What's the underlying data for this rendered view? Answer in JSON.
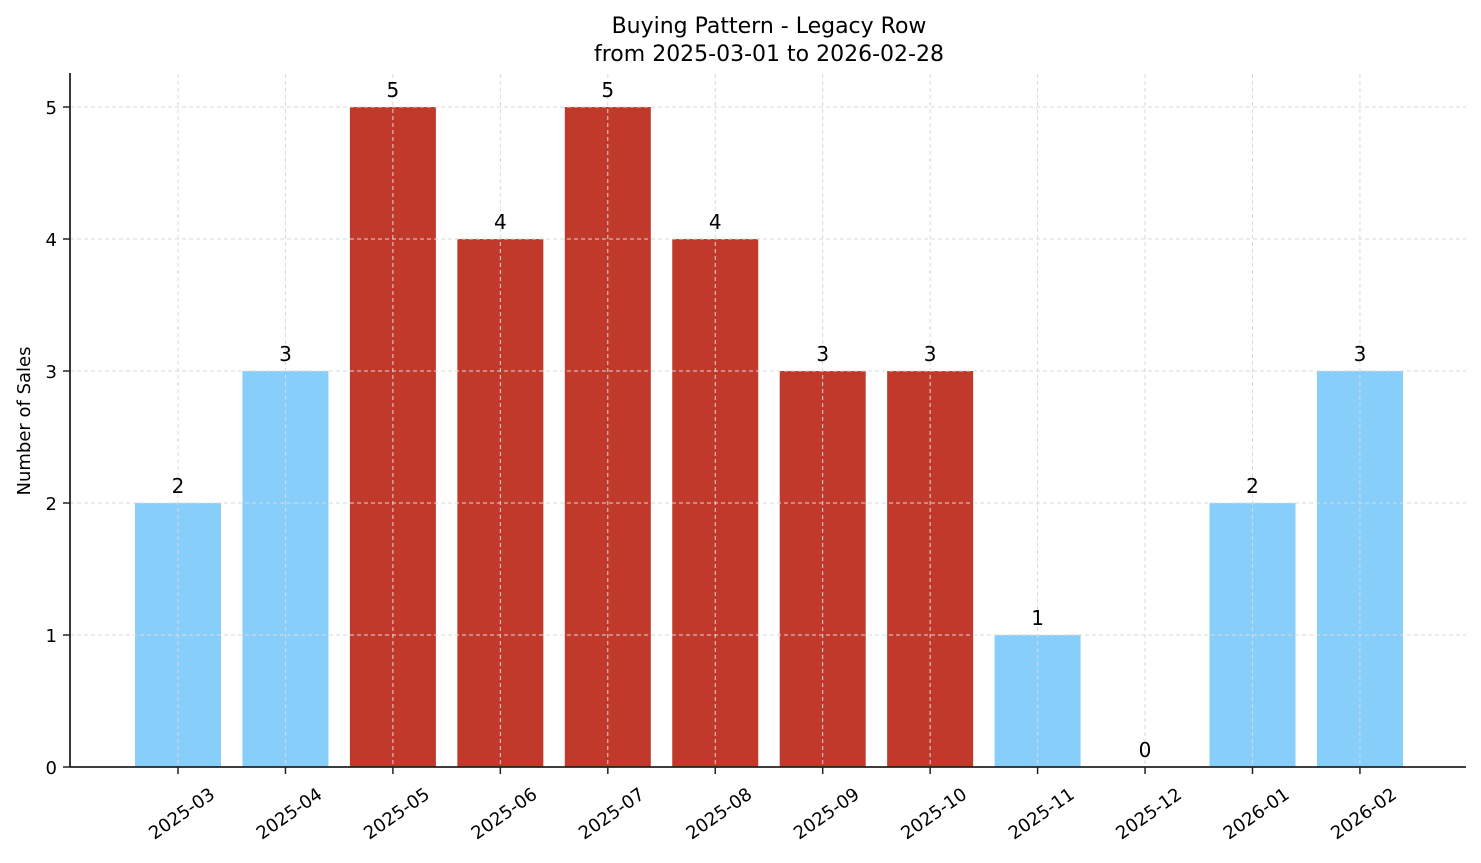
{
  "chart_data": {
    "type": "bar",
    "title": "Buying Pattern - Legacy Row",
    "subtitle": "from 2025-03-01 to 2026-02-28",
    "xlabel": "",
    "ylabel": "Number of Sales",
    "categories": [
      "2025-03",
      "2025-04",
      "2025-05",
      "2025-06",
      "2025-07",
      "2025-08",
      "2025-09",
      "2025-10",
      "2025-11",
      "2025-12",
      "2026-01",
      "2026-02"
    ],
    "values": [
      2,
      3,
      5,
      4,
      5,
      4,
      3,
      3,
      1,
      0,
      2,
      3
    ],
    "bar_colors": [
      "#87CEFA",
      "#87CEFA",
      "#C0392B",
      "#C0392B",
      "#C0392B",
      "#C0392B",
      "#C0392B",
      "#C0392B",
      "#87CEFA",
      "#87CEFA",
      "#87CEFA",
      "#87CEFA"
    ],
    "data_labels": [
      "2",
      "3",
      "5",
      "4",
      "5",
      "4",
      "3",
      "3",
      "1",
      "0",
      "2",
      "3"
    ],
    "yticks": [
      0,
      1,
      2,
      3,
      4,
      5
    ],
    "ylim": [
      0,
      5.25
    ],
    "grid": true,
    "legend": null,
    "colors": {
      "high": "#C0392B",
      "normal": "#87CEFA",
      "grid": "#d9d9d9",
      "axis": "#222222"
    }
  }
}
